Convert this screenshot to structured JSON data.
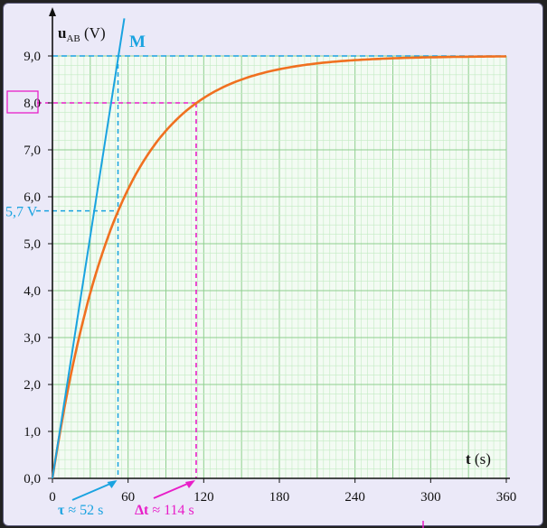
{
  "chart_data": {
    "type": "line",
    "x_tick_labels": [
      "0",
      "60",
      "120",
      "180",
      "240",
      "300",
      "360"
    ],
    "y_tick_labels": [
      "0,0",
      "1,0",
      "2,0",
      "3,0",
      "4,0",
      "5,0",
      "6,0",
      "7,0",
      "8,0",
      "9,0"
    ],
    "xlim": [
      0,
      360
    ],
    "ylim": [
      0,
      9
    ],
    "grid": true,
    "y_axis_label": {
      "var": "u",
      "sub": "AB",
      "unit": "(V)"
    },
    "x_axis_label": {
      "var": "t",
      "unit": "(s)"
    },
    "series": [
      {
        "kind": "exponential-charge",
        "E": 9.0,
        "tau": 52,
        "x_from": 0,
        "x_to": 360,
        "color": "#f07020"
      },
      {
        "kind": "tangent-at-origin",
        "points": [
          [
            0,
            0
          ],
          [
            57,
            9.8
          ]
        ],
        "color": "#1aa3e0"
      }
    ],
    "reference_lines": {
      "asymptote_y": 9.0,
      "tau_x": 52,
      "tau_y": 5.7,
      "dt_x": 114,
      "dt_y": 8.0
    },
    "annotations": {
      "point_M": "M",
      "level_label": "5,7 V",
      "tau_prefix": "τ",
      "tau_text": "≈ 52 s",
      "dt_prefix": "Δt",
      "dt_text": "≈ 114 s"
    },
    "colors": {
      "curve": "#f07020",
      "tangent": "#1aa3e0",
      "magenta": "#e81ec8",
      "grid_minor": "#c3ebc3",
      "grid_major": "#8fcf8f",
      "plot_bg": "#f3fbf3"
    }
  }
}
